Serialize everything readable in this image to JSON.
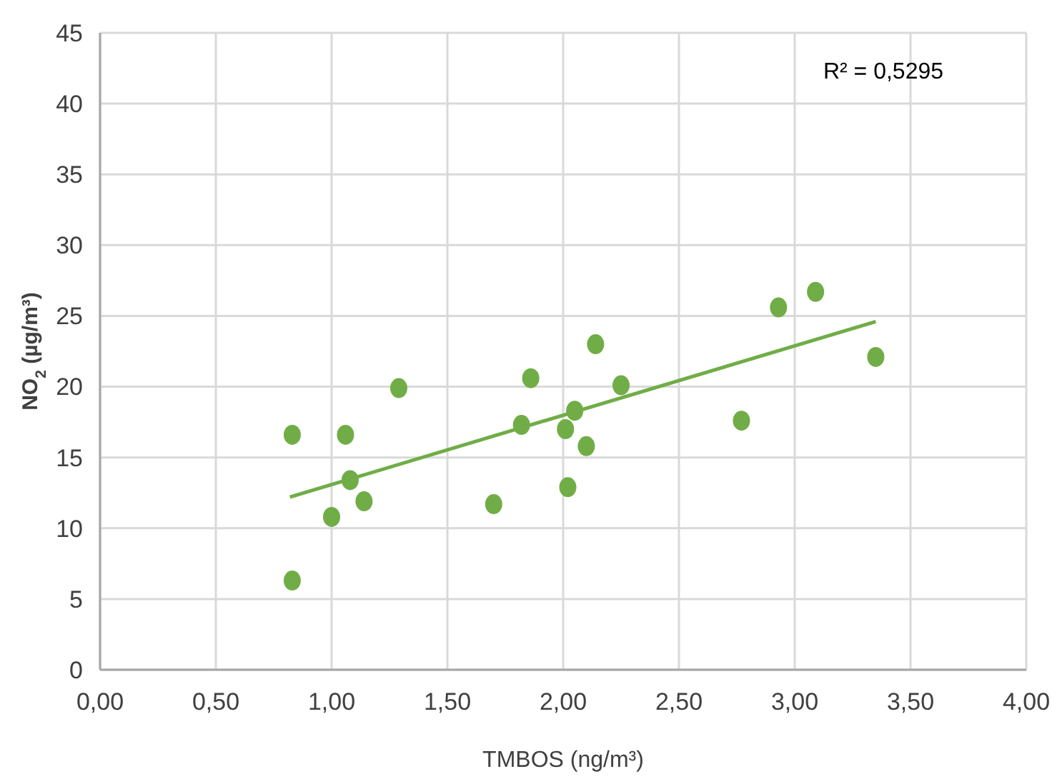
{
  "chart_data": {
    "type": "scatter",
    "xlabel": "TMBOS (ng/m³)",
    "ylabel": "NO$_{2}$ (µg/m³)",
    "xlim": [
      0,
      4
    ],
    "ylim": [
      0,
      45
    ],
    "xticks": [
      {
        "value": 0,
        "label": "0,00"
      },
      {
        "value": 0.5,
        "label": "0,50"
      },
      {
        "value": 1,
        "label": "1,00"
      },
      {
        "value": 1.5,
        "label": "1,50"
      },
      {
        "value": 2,
        "label": "2,00"
      },
      {
        "value": 2.5,
        "label": "2,50"
      },
      {
        "value": 3,
        "label": "3,00"
      },
      {
        "value": 3.5,
        "label": "3,50"
      },
      {
        "value": 4,
        "label": "4,00"
      }
    ],
    "yticks": [
      0,
      5,
      10,
      15,
      20,
      25,
      30,
      35,
      40,
      45
    ],
    "grid": true,
    "annotations": [
      "R² = 0,5295"
    ],
    "series": [
      {
        "marker": "circle",
        "color": "#70ad47",
        "x": [
          0.83,
          0.83,
          1.0,
          1.06,
          1.08,
          1.14,
          1.29,
          1.7,
          1.82,
          1.86,
          2.01,
          2.02,
          2.05,
          2.1,
          2.14,
          2.25,
          2.77,
          2.93,
          3.09,
          3.35
        ],
        "values": [
          6.3,
          16.6,
          10.8,
          16.6,
          13.4,
          11.9,
          19.9,
          11.7,
          17.3,
          20.6,
          17.0,
          12.9,
          18.3,
          15.8,
          23.0,
          20.1,
          17.6,
          25.6,
          26.7,
          22.1
        ]
      },
      {
        "type": "line",
        "color": "#70ad47",
        "x": [
          0.82,
          3.35
        ],
        "values": [
          12.2,
          24.6
        ]
      }
    ]
  }
}
